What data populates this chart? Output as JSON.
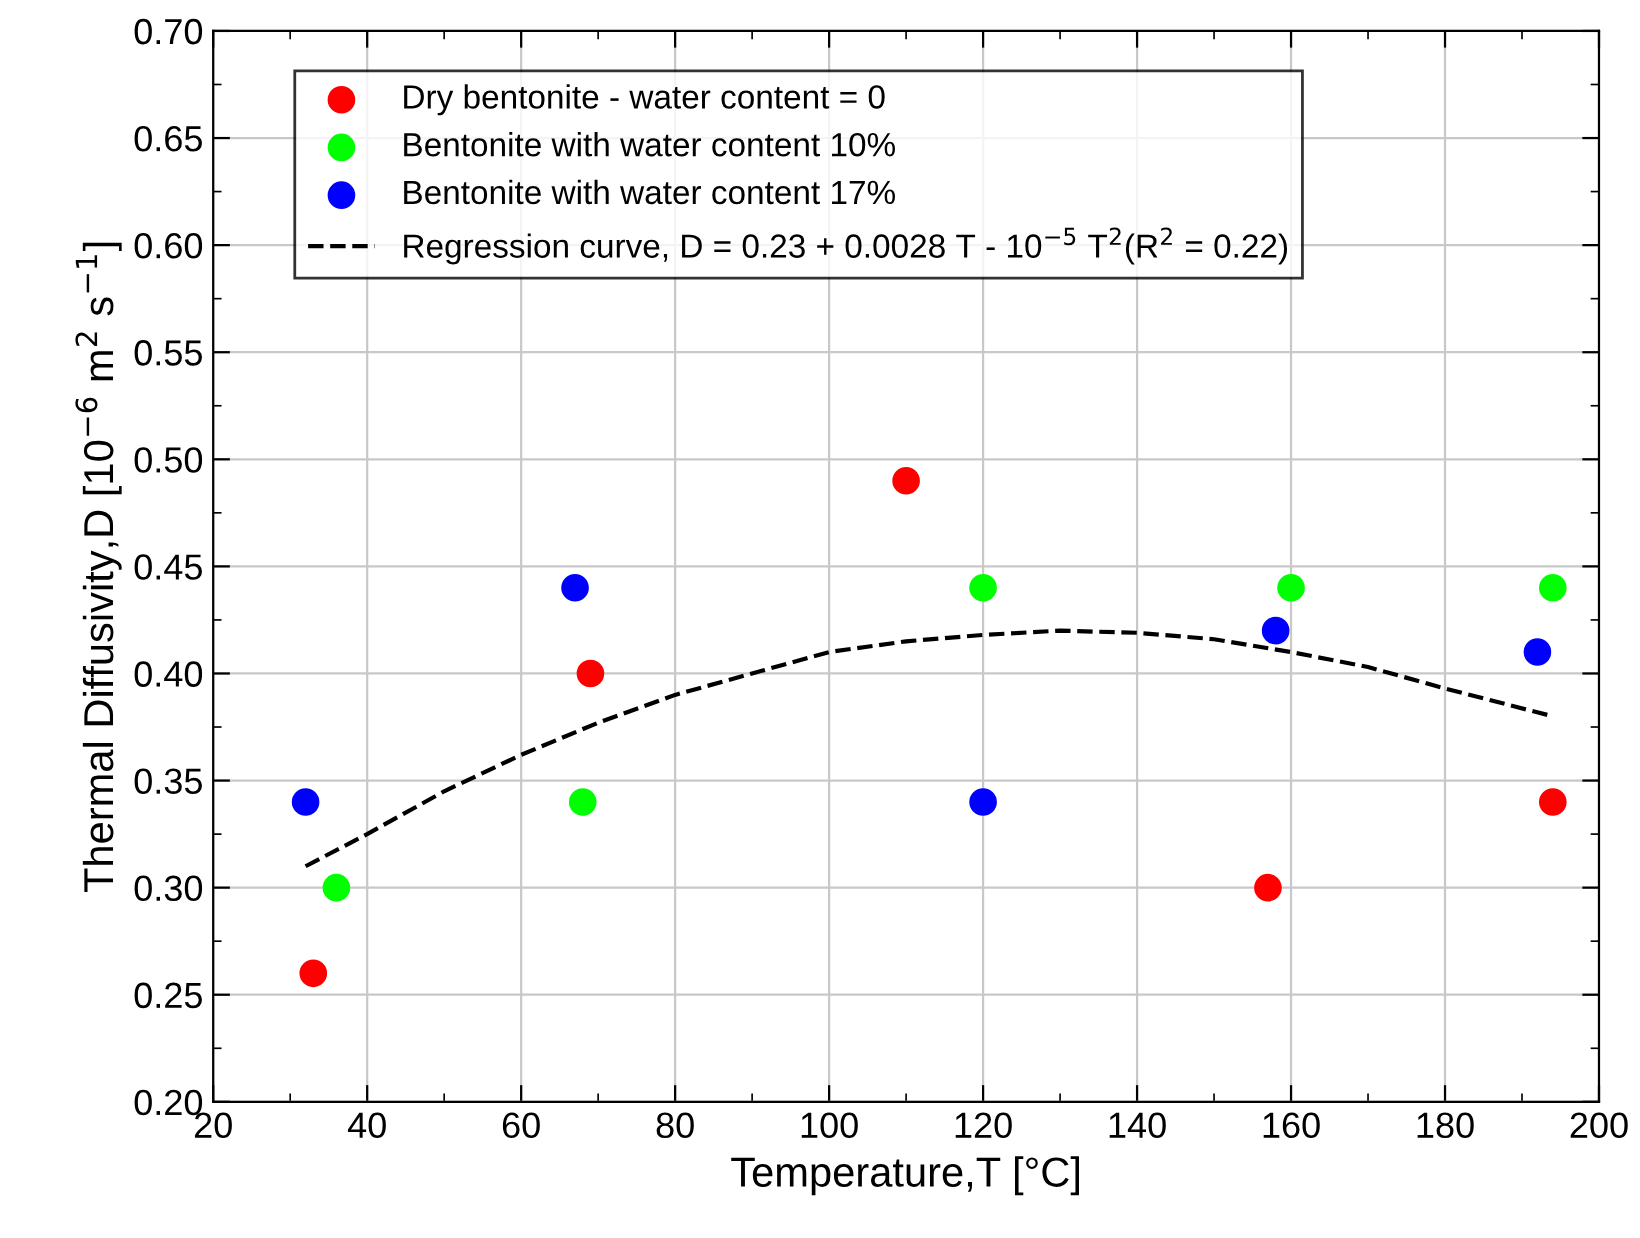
{
  "chart_data": {
    "type": "scatter",
    "xlabel": "Temperature,T [°C]",
    "ylabel": "Thermal Diffusivity,D [10$^{−6}$ m$^{2}$ s$^{−1}$]",
    "xlim": [
      20,
      200
    ],
    "xticks": [
      20,
      40,
      60,
      80,
      100,
      120,
      140,
      160,
      180,
      200
    ],
    "ylim": [
      0.2,
      0.7
    ],
    "yticks": [
      {
        "value": 0.2,
        "label": "0.20"
      },
      {
        "value": 0.25,
        "label": "0.25"
      },
      {
        "value": 0.3,
        "label": "0.30"
      },
      {
        "value": 0.35,
        "label": "0.35"
      },
      {
        "value": 0.4,
        "label": "0.40"
      },
      {
        "value": 0.45,
        "label": "0.45"
      },
      {
        "value": 0.5,
        "label": "0.50"
      },
      {
        "value": 0.55,
        "label": "0.55"
      },
      {
        "value": 0.6,
        "label": "0.60"
      },
      {
        "value": 0.65,
        "label": "0.65"
      },
      {
        "value": 0.7,
        "label": "0.70"
      }
    ],
    "grid": true,
    "legend": "top left",
    "marker": "circle",
    "series": [
      {
        "name": "Dry bentonite - water content = 0",
        "color": "#ff0000",
        "x": [
          33,
          69,
          110,
          157,
          194
        ],
        "values": [
          0.26,
          0.4,
          0.49,
          0.3,
          0.34
        ]
      },
      {
        "name": "Bentonite with water content 10%",
        "color": "#00ff00",
        "x": [
          36,
          68,
          120,
          160,
          194
        ],
        "values": [
          0.3,
          0.34,
          0.44,
          0.44,
          0.44
        ]
      },
      {
        "name": "Bentonite with water content 17%",
        "color": "#0000ff",
        "x": [
          32,
          67,
          120,
          158,
          192
        ],
        "values": [
          0.34,
          0.44,
          0.34,
          0.42,
          0.41
        ]
      },
      {
        "name": "Regression curve, D = 0.23 + 0.0028 T - 10$^{−5}$ T$^{2}$(R$^{2}$ = 0.22)",
        "type": "line",
        "line_style": "dashed",
        "marker": "none",
        "color": "#000000",
        "x": [
          32,
          40,
          50,
          60,
          70,
          80,
          90,
          100,
          110,
          120,
          130,
          140,
          150,
          160,
          170,
          180,
          194
        ],
        "values": [
          0.31,
          0.325,
          0.345,
          0.362,
          0.377,
          0.39,
          0.4,
          0.41,
          0.415,
          0.418,
          0.42,
          0.419,
          0.416,
          0.41,
          0.403,
          0.393,
          0.38
        ]
      }
    ]
  }
}
